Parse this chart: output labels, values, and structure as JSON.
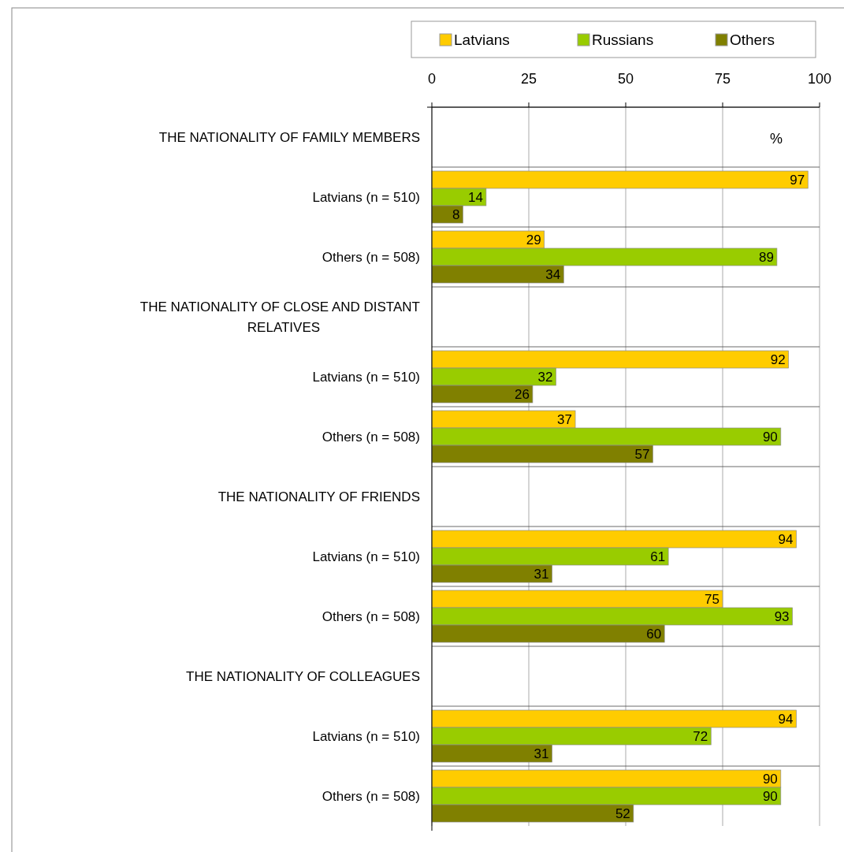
{
  "chart_data": {
    "type": "bar",
    "orientation": "horizontal",
    "categories": [
      "THE NATIONALITY OF FAMILY MEMBERS",
      "Latvians (n = 510)",
      "Others (n = 508)",
      "THE NATIONALITY OF CLOSE AND DISTANT RELATIVES",
      "Latvians (n = 510)",
      "Others (n = 508)",
      "THE NATIONALITY OF FRIENDS",
      "Latvians (n = 510)",
      "Others (n = 508)",
      "THE NATIONALITY OF COLLEAGUES",
      "Latvians (n = 510)",
      "Others (n = 508)"
    ],
    "series": [
      {
        "name": "Latvians",
        "color": "#ffcc00",
        "values": [
          null,
          97,
          29,
          null,
          92,
          37,
          null,
          94,
          75,
          null,
          94,
          90
        ]
      },
      {
        "name": "Russians",
        "color": "#99cc00",
        "values": [
          null,
          14,
          89,
          null,
          32,
          90,
          null,
          61,
          93,
          null,
          72,
          90
        ]
      },
      {
        "name": "Others",
        "color": "#808000",
        "values": [
          null,
          8,
          34,
          null,
          26,
          57,
          null,
          31,
          60,
          null,
          31,
          52
        ]
      }
    ],
    "xlim": [
      0,
      100
    ],
    "xticks": [
      0,
      25,
      50,
      75,
      100
    ],
    "grid": "x",
    "legend": "top",
    "data_labels": true,
    "annotations": [
      "%"
    ]
  }
}
